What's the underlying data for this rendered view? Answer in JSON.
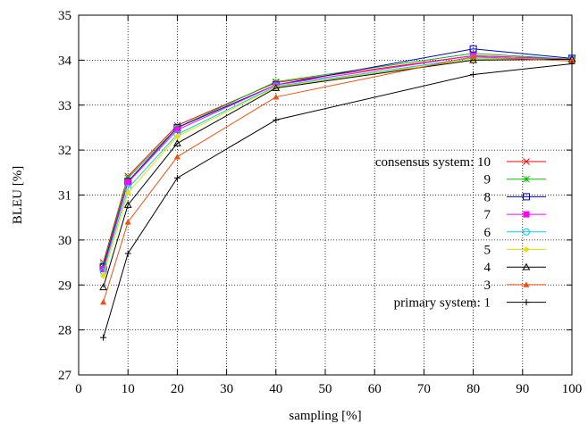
{
  "chart_data": {
    "type": "line",
    "xlabel": "sampling [%]",
    "ylabel": "BLEU [%]",
    "xlim": [
      0,
      100
    ],
    "ylim": [
      27,
      35
    ],
    "xticks": [
      0,
      10,
      20,
      30,
      40,
      50,
      60,
      70,
      80,
      90,
      100
    ],
    "yticks": [
      27,
      28,
      29,
      30,
      31,
      32,
      33,
      34,
      35
    ],
    "grid": true,
    "legend_position": "right-middle",
    "x": [
      5,
      10,
      20,
      40,
      80,
      100
    ],
    "series": [
      {
        "name": "consensus system: 10",
        "color": "#ff0000",
        "marker": "x",
        "values": [
          29.5,
          31.42,
          32.55,
          33.5,
          34.1,
          34.02
        ]
      },
      {
        "name": "9",
        "color": "#00c000",
        "marker": "star",
        "values": [
          29.45,
          31.38,
          32.5,
          33.52,
          34.15,
          34.02
        ]
      },
      {
        "name": "8",
        "color": "#0000c0",
        "marker": "square-open",
        "values": [
          29.4,
          31.3,
          32.5,
          33.45,
          34.25,
          34.04
        ]
      },
      {
        "name": "7",
        "color": "#ff00ff",
        "marker": "square-filled",
        "values": [
          29.35,
          31.28,
          32.45,
          33.45,
          34.1,
          34.02
        ]
      },
      {
        "name": "6",
        "color": "#00d0e0",
        "marker": "circle-open",
        "values": [
          29.3,
          31.15,
          32.35,
          33.42,
          34.05,
          34.02
        ]
      },
      {
        "name": "5",
        "color": "#e8e000",
        "marker": "diamond-filled",
        "values": [
          29.2,
          31.05,
          32.3,
          33.4,
          34.02,
          34.0
        ]
      },
      {
        "name": "4",
        "color": "#000000",
        "marker": "triangle-open",
        "values": [
          28.95,
          30.78,
          32.15,
          33.38,
          34.0,
          34.02
        ]
      },
      {
        "name": "3",
        "color": "#f05010",
        "marker": "triangle-filled",
        "values": [
          28.62,
          30.4,
          31.85,
          33.18,
          34.08,
          33.98
        ]
      },
      {
        "name": "primary system: 1",
        "color": "#000000",
        "marker": "plus",
        "values": [
          27.83,
          29.7,
          31.38,
          32.67,
          33.68,
          33.92
        ]
      }
    ],
    "legend_labels": [
      "consensus system: 10",
      "9",
      "8",
      "7",
      "6",
      "5",
      "4",
      "3",
      "primary system: 1"
    ]
  }
}
